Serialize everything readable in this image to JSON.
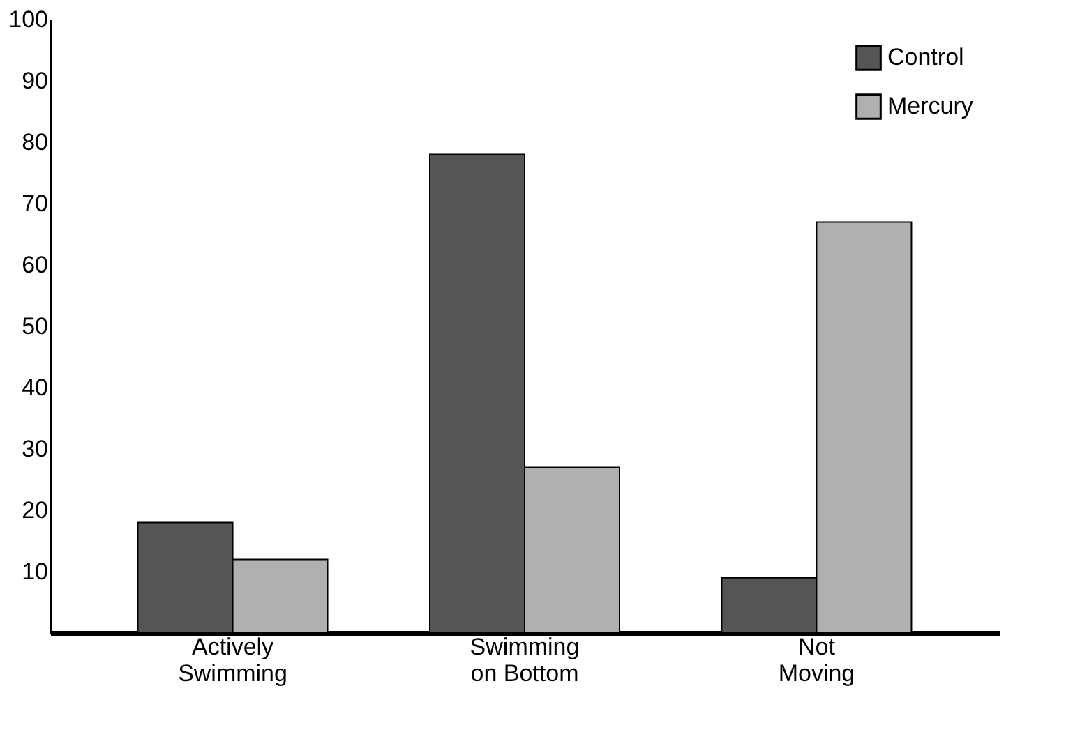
{
  "chart_data": {
    "type": "bar",
    "categories": [
      "Actively Swimming",
      "Swimming on Bottom",
      "Not Moving"
    ],
    "series": [
      {
        "name": "Control",
        "color": "#555555",
        "values": [
          18,
          78,
          9
        ]
      },
      {
        "name": "Mercury",
        "color": "#b0b0b0",
        "values": [
          12,
          27,
          67
        ]
      }
    ],
    "ylim": [
      0,
      100
    ],
    "yticks": [
      10,
      20,
      30,
      40,
      50,
      60,
      70,
      80,
      90,
      100
    ],
    "grid": false,
    "legend": "top right"
  }
}
